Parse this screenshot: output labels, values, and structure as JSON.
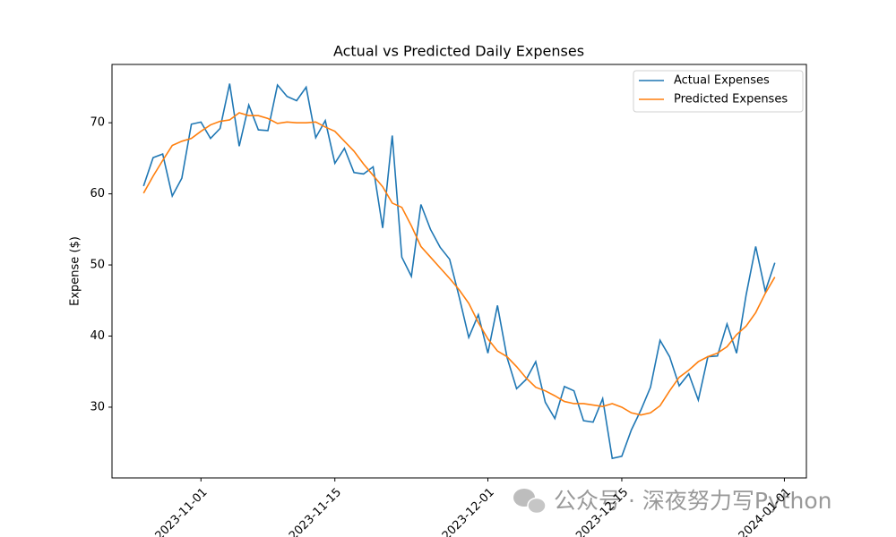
{
  "chart_data": {
    "type": "line",
    "title": "Actual vs Predicted Daily Expenses",
    "ylabel": "Expense ($)",
    "x": [
      "2023-10-26",
      "2023-10-27",
      "2023-10-28",
      "2023-10-29",
      "2023-10-30",
      "2023-10-31",
      "2023-11-01",
      "2023-11-02",
      "2023-11-03",
      "2023-11-04",
      "2023-11-05",
      "2023-11-06",
      "2023-11-07",
      "2023-11-08",
      "2023-11-09",
      "2023-11-10",
      "2023-11-11",
      "2023-11-12",
      "2023-11-13",
      "2023-11-14",
      "2023-11-15",
      "2023-11-16",
      "2023-11-17",
      "2023-11-18",
      "2023-11-19",
      "2023-11-20",
      "2023-11-21",
      "2023-11-22",
      "2023-11-23",
      "2023-11-24",
      "2023-11-25",
      "2023-11-26",
      "2023-11-27",
      "2023-11-28",
      "2023-11-29",
      "2023-11-30",
      "2023-12-01",
      "2023-12-02",
      "2023-12-03",
      "2023-12-04",
      "2023-12-05",
      "2023-12-06",
      "2023-12-07",
      "2023-12-08",
      "2023-12-09",
      "2023-12-10",
      "2023-12-11",
      "2023-12-12",
      "2023-12-13",
      "2023-12-14",
      "2023-12-15",
      "2023-12-16",
      "2023-12-17",
      "2023-12-18",
      "2023-12-19",
      "2023-12-20",
      "2023-12-21",
      "2023-12-22",
      "2023-12-23",
      "2023-12-24",
      "2023-12-25",
      "2023-12-26",
      "2023-12-27",
      "2023-12-28",
      "2023-12-29",
      "2023-12-30",
      "2023-12-31"
    ],
    "series": [
      {
        "name": "Actual Expenses",
        "color": "#1f77b4",
        "values": [
          61.1,
          65.1,
          65.6,
          59.7,
          62.2,
          69.8,
          70.1,
          67.8,
          69.2,
          75.5,
          66.7,
          72.5,
          69.0,
          68.9,
          75.3,
          73.7,
          73.1,
          75.0,
          67.9,
          70.3,
          64.3,
          66.4,
          63.0,
          62.8,
          63.8,
          55.2,
          68.2,
          51.1,
          48.4,
          58.5,
          55.0,
          52.5,
          50.8,
          45.5,
          39.8,
          43.0,
          37.6,
          44.3,
          37.0,
          32.6,
          33.9,
          36.4,
          30.7,
          28.4,
          32.9,
          32.3,
          28.1,
          27.9,
          31.2,
          22.8,
          23.1,
          26.8,
          29.6,
          32.8,
          39.4,
          37.1,
          33.0,
          34.7,
          31.0,
          37.1,
          37.2,
          41.7,
          37.6,
          45.8,
          52.6,
          46.3,
          50.3
        ]
      },
      {
        "name": "Predicted Expenses",
        "color": "#ff7f0e",
        "values": [
          60.1,
          62.5,
          64.7,
          66.8,
          67.4,
          67.8,
          68.8,
          69.7,
          70.2,
          70.4,
          71.4,
          71.0,
          71.0,
          70.6,
          69.9,
          70.1,
          70.0,
          70.0,
          70.1,
          69.4,
          68.8,
          67.4,
          66.0,
          64.2,
          62.6,
          61.0,
          58.7,
          58.1,
          55.5,
          52.6,
          51.1,
          49.6,
          48.1,
          46.5,
          44.6,
          41.9,
          39.6,
          37.9,
          37.1,
          35.7,
          34.1,
          32.8,
          32.3,
          31.6,
          30.8,
          30.5,
          30.5,
          30.3,
          30.1,
          30.5,
          30.0,
          29.2,
          28.9,
          29.2,
          30.2,
          32.3,
          34.2,
          35.2,
          36.4,
          37.1,
          37.6,
          38.5,
          40.2,
          41.4,
          43.3,
          46.0,
          48.3
        ]
      }
    ],
    "xlim": [
      "2023-10-22T16:48",
      "2024-01-03T07:12"
    ],
    "xticks": [
      "2023-11-01",
      "2023-11-15",
      "2023-12-01",
      "2023-12-15",
      "2024-01-01"
    ],
    "ylim": [
      20.05,
      78.2
    ],
    "yticks": [
      30,
      40,
      50,
      60,
      70
    ],
    "legend": "upper right",
    "grid": false
  },
  "watermark": "公众号 · 深夜努力写Python"
}
